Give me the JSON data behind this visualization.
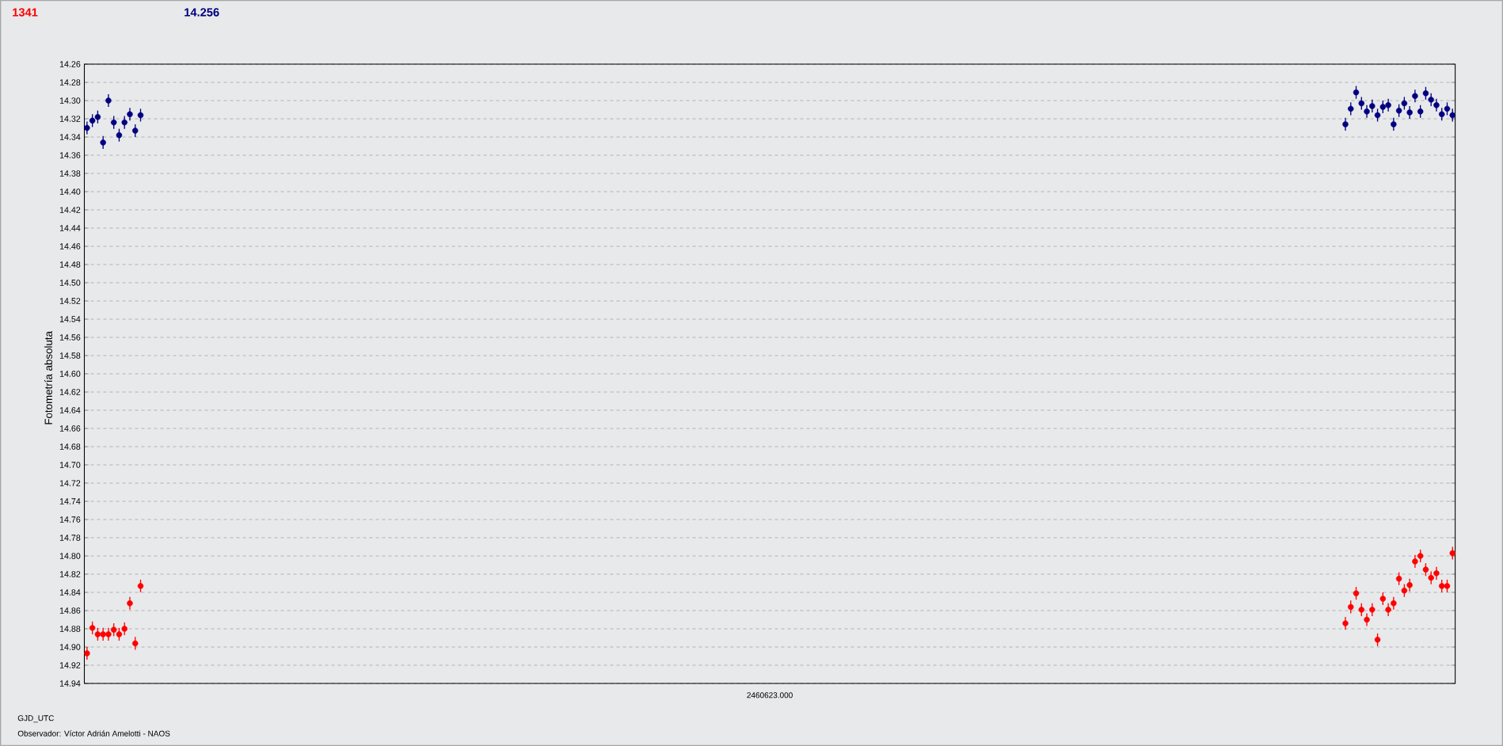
{
  "chart_data": {
    "type": "scatter",
    "ylabel": "Fotometría absoluta",
    "xlabel": "GJD_UTC",
    "annotations": [
      "2460623.000",
      "Observador: Víctor Adrián Amelotti - NAOS"
    ],
    "categories": [
      null,
      null,
      null,
      null,
      null,
      null,
      null,
      null,
      null,
      null,
      null,
      null,
      null,
      null,
      null,
      null,
      null,
      null,
      null,
      null,
      null,
      null,
      null,
      null,
      null,
      null,
      null,
      null,
      null,
      null,
      null,
      null,
      null,
      null,
      null,
      null,
      null,
      null,
      null,
      null,
      null,
      null,
      null,
      null,
      null,
      null,
      null,
      null,
      null,
      null,
      null,
      null,
      null,
      null,
      null,
      null,
      null,
      null,
      null,
      null,
      null,
      null,
      null,
      null,
      null,
      null,
      null,
      null,
      null,
      null,
      null,
      null,
      null,
      null,
      null,
      null,
      null,
      null,
      null,
      null,
      null,
      null,
      null,
      null,
      null,
      null,
      null,
      null,
      null,
      null,
      null,
      null,
      null,
      null,
      null,
      null,
      null,
      null,
      null,
      null,
      null,
      null,
      null,
      null,
      null,
      null,
      null,
      null,
      null,
      null,
      null,
      null,
      null,
      null,
      null,
      null,
      null,
      null,
      null,
      null,
      null,
      null,
      null,
      null,
      null,
      null,
      null,
      null,
      null,
      null,
      null,
      null,
      null,
      null,
      null,
      null,
      null,
      null,
      null,
      null,
      null,
      null,
      null,
      null,
      null,
      null,
      null,
      null,
      null,
      null,
      null,
      null,
      null,
      null,
      null,
      null,
      null,
      null,
      null,
      null,
      null,
      null,
      null,
      null,
      null,
      null,
      null,
      null,
      null,
      null,
      null,
      null,
      null,
      null,
      null,
      null,
      null,
      null,
      null,
      null,
      null,
      null,
      null,
      null,
      null,
      null,
      null,
      null,
      null,
      null,
      null,
      null,
      null,
      null,
      null,
      null,
      null,
      null,
      null,
      null,
      null,
      null,
      null,
      null,
      null,
      null,
      null,
      null,
      null,
      null,
      null,
      null,
      null,
      null,
      null,
      null,
      null,
      null,
      null,
      null,
      null,
      null,
      null,
      null,
      null,
      null,
      null,
      null,
      null,
      null,
      null,
      null,
      null,
      null,
      null,
      null,
      null,
      null,
      null,
      null,
      null,
      null,
      null,
      null,
      null,
      null,
      null,
      null,
      null,
      null,
      null,
      null,
      null,
      null,
      null,
      null
    ],
    "series": [
      {
        "name": "1341",
        "color": "#ff0000",
        "values": [
          14.907,
          14.879,
          14.886,
          14.886,
          14.886,
          14.881,
          14.886,
          14.88,
          14.852,
          14.896,
          14.833,
          null,
          null,
          null,
          null,
          null,
          null,
          null,
          null,
          null,
          null,
          null,
          null,
          null,
          null,
          null,
          null,
          null,
          null,
          null,
          null,
          null,
          null,
          null,
          null,
          null,
          null,
          null,
          null,
          null,
          null,
          null,
          null,
          null,
          null,
          null,
          null,
          null,
          null,
          null,
          null,
          null,
          null,
          null,
          null,
          null,
          null,
          null,
          null,
          null,
          null,
          null,
          null,
          null,
          null,
          null,
          null,
          null,
          null,
          null,
          null,
          null,
          null,
          null,
          null,
          null,
          null,
          null,
          null,
          null,
          null,
          null,
          null,
          null,
          null,
          null,
          null,
          null,
          null,
          null,
          null,
          null,
          null,
          null,
          null,
          null,
          null,
          null,
          null,
          null,
          null,
          null,
          null,
          null,
          null,
          null,
          null,
          null,
          null,
          null,
          null,
          null,
          null,
          null,
          null,
          null,
          null,
          null,
          null,
          null,
          null,
          null,
          null,
          null,
          null,
          null,
          null,
          null,
          null,
          null,
          null,
          null,
          null,
          null,
          null,
          null,
          null,
          null,
          null,
          null,
          null,
          null,
          null,
          null,
          null,
          null,
          null,
          null,
          null,
          null,
          null,
          null,
          null,
          null,
          null,
          null,
          null,
          null,
          null,
          null,
          null,
          null,
          null,
          null,
          null,
          null,
          null,
          null,
          null,
          null,
          null,
          null,
          null,
          null,
          null,
          null,
          null,
          null,
          null,
          null,
          null,
          null,
          null,
          null,
          null,
          null,
          null,
          null,
          null,
          null,
          null,
          null,
          null,
          null,
          null,
          null,
          null,
          null,
          null,
          null,
          null,
          null,
          null,
          null,
          null,
          null,
          null,
          null,
          null,
          null,
          null,
          null,
          null,
          null,
          null,
          null,
          null,
          null,
          null,
          null,
          null,
          null,
          null,
          null,
          null,
          null,
          null,
          null,
          null,
          null,
          null,
          null,
          null,
          null,
          null,
          14.874,
          14.856,
          14.841,
          14.859,
          14.87,
          14.859,
          14.892,
          14.847,
          14.859,
          14.852,
          14.825,
          14.838,
          14.832,
          14.806,
          14.8,
          14.815,
          14.824,
          14.819,
          14.833,
          14.833,
          14.797
        ],
        "errors": [
          0.007,
          0.007,
          0.007,
          0.007,
          0.007,
          0.007,
          0.007,
          0.007,
          0.007,
          0.007,
          0.007,
          null,
          null,
          null,
          null,
          null,
          null,
          null,
          null,
          null,
          null,
          null,
          null,
          null,
          null,
          null,
          null,
          null,
          null,
          null,
          null,
          null,
          null,
          null,
          null,
          null,
          null,
          null,
          null,
          null,
          null,
          null,
          null,
          null,
          null,
          null,
          null,
          null,
          null,
          null,
          null,
          null,
          null,
          null,
          null,
          null,
          null,
          null,
          null,
          null,
          null,
          null,
          null,
          null,
          null,
          null,
          null,
          null,
          null,
          null,
          null,
          null,
          null,
          null,
          null,
          null,
          null,
          null,
          null,
          null,
          null,
          null,
          null,
          null,
          null,
          null,
          null,
          null,
          null,
          null,
          null,
          null,
          null,
          null,
          null,
          null,
          null,
          null,
          null,
          null,
          null,
          null,
          null,
          null,
          null,
          null,
          null,
          null,
          null,
          null,
          null,
          null,
          null,
          null,
          null,
          null,
          null,
          null,
          null,
          null,
          null,
          null,
          null,
          null,
          null,
          null,
          null,
          null,
          null,
          null,
          null,
          null,
          null,
          null,
          null,
          null,
          null,
          null,
          null,
          null,
          null,
          null,
          null,
          null,
          null,
          null,
          null,
          null,
          null,
          null,
          null,
          null,
          null,
          null,
          null,
          null,
          null,
          null,
          null,
          null,
          null,
          null,
          null,
          null,
          null,
          null,
          null,
          null,
          null,
          null,
          null,
          null,
          null,
          null,
          null,
          null,
          null,
          null,
          null,
          null,
          null,
          null,
          null,
          null,
          null,
          null,
          null,
          null,
          null,
          null,
          null,
          null,
          null,
          null,
          null,
          null,
          null,
          null,
          null,
          null,
          null,
          null,
          null,
          null,
          null,
          null,
          null,
          null,
          null,
          null,
          null,
          null,
          null,
          null,
          null,
          null,
          null,
          null,
          null,
          null,
          null,
          null,
          null,
          null,
          null,
          null,
          null,
          null,
          null,
          null,
          null,
          null,
          null,
          null,
          null,
          0.007,
          0.007,
          0.007,
          0.007,
          0.007,
          0.007,
          0.007,
          0.007,
          0.007,
          0.007,
          0.007,
          0.007,
          0.007,
          0.007,
          0.007,
          0.007,
          0.007,
          0.007,
          0.007,
          0.007,
          0.007
        ]
      },
      {
        "name": "14.256",
        "color": "#000080",
        "values": [
          14.33,
          14.322,
          14.318,
          14.346,
          14.3,
          14.324,
          14.338,
          14.324,
          14.315,
          14.333,
          14.316,
          null,
          null,
          null,
          null,
          null,
          null,
          null,
          null,
          null,
          null,
          null,
          null,
          null,
          null,
          null,
          null,
          null,
          null,
          null,
          null,
          null,
          null,
          null,
          null,
          null,
          null,
          null,
          null,
          null,
          null,
          null,
          null,
          null,
          null,
          null,
          null,
          null,
          null,
          null,
          null,
          null,
          null,
          null,
          null,
          null,
          null,
          null,
          null,
          null,
          null,
          null,
          null,
          null,
          null,
          null,
          null,
          null,
          null,
          null,
          null,
          null,
          null,
          null,
          null,
          null,
          null,
          null,
          null,
          null,
          null,
          null,
          null,
          null,
          null,
          null,
          null,
          null,
          null,
          null,
          null,
          null,
          null,
          null,
          null,
          null,
          null,
          null,
          null,
          null,
          null,
          null,
          null,
          null,
          null,
          null,
          null,
          null,
          null,
          null,
          null,
          null,
          null,
          null,
          null,
          null,
          null,
          null,
          null,
          null,
          null,
          null,
          null,
          null,
          null,
          null,
          null,
          null,
          null,
          null,
          null,
          null,
          null,
          null,
          null,
          null,
          null,
          null,
          null,
          null,
          null,
          null,
          null,
          null,
          null,
          null,
          null,
          null,
          null,
          null,
          null,
          null,
          null,
          null,
          null,
          null,
          null,
          null,
          null,
          null,
          null,
          null,
          null,
          null,
          null,
          null,
          null,
          null,
          null,
          null,
          null,
          null,
          null,
          null,
          null,
          null,
          null,
          null,
          null,
          null,
          null,
          null,
          null,
          null,
          null,
          null,
          null,
          null,
          null,
          null,
          null,
          null,
          null,
          null,
          null,
          null,
          null,
          null,
          null,
          null,
          null,
          null,
          null,
          null,
          null,
          null,
          null,
          null,
          null,
          null,
          null,
          null,
          null,
          null,
          null,
          null,
          null,
          null,
          null,
          null,
          null,
          null,
          null,
          null,
          null,
          null,
          null,
          null,
          null,
          null,
          null,
          null,
          null,
          null,
          null,
          14.326,
          14.309,
          14.291,
          14.303,
          14.312,
          14.306,
          14.316,
          14.307,
          14.305,
          14.326,
          14.311,
          14.303,
          14.313,
          14.295,
          14.312,
          14.292,
          14.299,
          14.305,
          14.315,
          14.309,
          14.316
        ],
        "errors": [
          0.007,
          0.007,
          0.007,
          0.007,
          0.007,
          0.007,
          0.007,
          0.007,
          0.007,
          0.007,
          0.007,
          null,
          null,
          null,
          null,
          null,
          null,
          null,
          null,
          null,
          null,
          null,
          null,
          null,
          null,
          null,
          null,
          null,
          null,
          null,
          null,
          null,
          null,
          null,
          null,
          null,
          null,
          null,
          null,
          null,
          null,
          null,
          null,
          null,
          null,
          null,
          null,
          null,
          null,
          null,
          null,
          null,
          null,
          null,
          null,
          null,
          null,
          null,
          null,
          null,
          null,
          null,
          null,
          null,
          null,
          null,
          null,
          null,
          null,
          null,
          null,
          null,
          null,
          null,
          null,
          null,
          null,
          null,
          null,
          null,
          null,
          null,
          null,
          null,
          null,
          null,
          null,
          null,
          null,
          null,
          null,
          null,
          null,
          null,
          null,
          null,
          null,
          null,
          null,
          null,
          null,
          null,
          null,
          null,
          null,
          null,
          null,
          null,
          null,
          null,
          null,
          null,
          null,
          null,
          null,
          null,
          null,
          null,
          null,
          null,
          null,
          null,
          null,
          null,
          null,
          null,
          null,
          null,
          null,
          null,
          null,
          null,
          null,
          null,
          null,
          null,
          null,
          null,
          null,
          null,
          null,
          null,
          null,
          null,
          null,
          null,
          null,
          null,
          null,
          null,
          null,
          null,
          null,
          null,
          null,
          null,
          null,
          null,
          null,
          null,
          null,
          null,
          null,
          null,
          null,
          null,
          null,
          null,
          null,
          null,
          null,
          null,
          null,
          null,
          null,
          null,
          null,
          null,
          null,
          null,
          null,
          null,
          null,
          null,
          null,
          null,
          null,
          null,
          null,
          null,
          null,
          null,
          null,
          null,
          null,
          null,
          null,
          null,
          null,
          null,
          null,
          null,
          null,
          null,
          null,
          null,
          null,
          null,
          null,
          null,
          null,
          null,
          null,
          null,
          null,
          null,
          null,
          null,
          null,
          null,
          null,
          null,
          null,
          null,
          null,
          null,
          null,
          null,
          null,
          null,
          null,
          null,
          null,
          null,
          null,
          0.007,
          0.007,
          0.007,
          0.007,
          0.007,
          0.007,
          0.007,
          0.007,
          0.007,
          0.007,
          0.007,
          0.007,
          0.007,
          0.007,
          0.007,
          0.007,
          0.007,
          0.007,
          0.007,
          0.007,
          0.007
        ]
      }
    ],
    "ylim": [
      14.94,
      14.26
    ],
    "yticks": [
      {
        "value": 14.26,
        "label": "14.26"
      },
      {
        "value": 14.28,
        "label": "14.28"
      },
      {
        "value": 14.3,
        "label": "14.30"
      },
      {
        "value": 14.32,
        "label": "14.32"
      },
      {
        "value": 14.34,
        "label": "14.34"
      },
      {
        "value": 14.36,
        "label": "14.36"
      },
      {
        "value": 14.38,
        "label": "14.38"
      },
      {
        "value": 14.4,
        "label": "14.40"
      },
      {
        "value": 14.42,
        "label": "14.42"
      },
      {
        "value": 14.44,
        "label": "14.44"
      },
      {
        "value": 14.46,
        "label": "14.46"
      },
      {
        "value": 14.48,
        "label": "14.48"
      },
      {
        "value": 14.5,
        "label": "14.50"
      },
      {
        "value": 14.52,
        "label": "14.52"
      },
      {
        "value": 14.54,
        "label": "14.54"
      },
      {
        "value": 14.56,
        "label": "14.56"
      },
      {
        "value": 14.58,
        "label": "14.58"
      },
      {
        "value": 14.6,
        "label": "14.60"
      },
      {
        "value": 14.62,
        "label": "14.62"
      },
      {
        "value": 14.64,
        "label": "14.64"
      },
      {
        "value": 14.66,
        "label": "14.66"
      },
      {
        "value": 14.68,
        "label": "14.68"
      },
      {
        "value": 14.7,
        "label": "14.70"
      },
      {
        "value": 14.72,
        "label": "14.72"
      },
      {
        "value": 14.74,
        "label": "14.74"
      },
      {
        "value": 14.76,
        "label": "14.76"
      },
      {
        "value": 14.78,
        "label": "14.78"
      },
      {
        "value": 14.8,
        "label": "14.80"
      },
      {
        "value": 14.82,
        "label": "14.82"
      },
      {
        "value": 14.84,
        "label": "14.84"
      },
      {
        "value": 14.86,
        "label": "14.86"
      },
      {
        "value": 14.88,
        "label": "14.88"
      },
      {
        "value": 14.9,
        "label": "14.90"
      },
      {
        "value": 14.92,
        "label": "14.92"
      },
      {
        "value": 14.94,
        "label": "14.94"
      }
    ],
    "grid": "y",
    "marker": "circle"
  }
}
